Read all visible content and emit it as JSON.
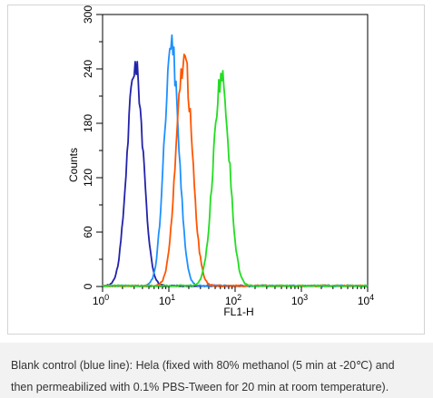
{
  "chart_data": {
    "type": "line",
    "title": "",
    "xlabel": "FL1-H",
    "ylabel": "Counts",
    "xscale": "log",
    "xlim": [
      1,
      10000
    ],
    "ylim": [
      0,
      300
    ],
    "x_tick_labels": [
      {
        "base": "10",
        "exp": "0"
      },
      {
        "base": "10",
        "exp": "1"
      },
      {
        "base": "10",
        "exp": "2"
      },
      {
        "base": "10",
        "exp": "3"
      },
      {
        "base": "10",
        "exp": "4"
      }
    ],
    "y_ticks": [
      0,
      60,
      120,
      180,
      240,
      300
    ],
    "y_tick_labels": [
      "0",
      "60",
      "120",
      "180",
      "240",
      "300"
    ],
    "grid": false,
    "legend": false,
    "series": [
      {
        "color": "#2222aa",
        "peak_x": 3.1,
        "peak_y": 243,
        "spread": 0.12
      },
      {
        "color": "#1e90ff",
        "peak_x": 11,
        "peak_y": 262,
        "spread": 0.11
      },
      {
        "color": "#ff5500",
        "peak_x": 17,
        "peak_y": 251,
        "spread": 0.12
      },
      {
        "color": "#22dd22",
        "peak_x": 62,
        "peak_y": 230,
        "spread": 0.12
      }
    ]
  },
  "caption": {
    "line1": "Blank control (blue line): Hela (fixed with 80% methanol (5 min at -20℃) and",
    "line2": "then permeabilized with 0.1% PBS-Tween for 20 min at room temperature)."
  }
}
